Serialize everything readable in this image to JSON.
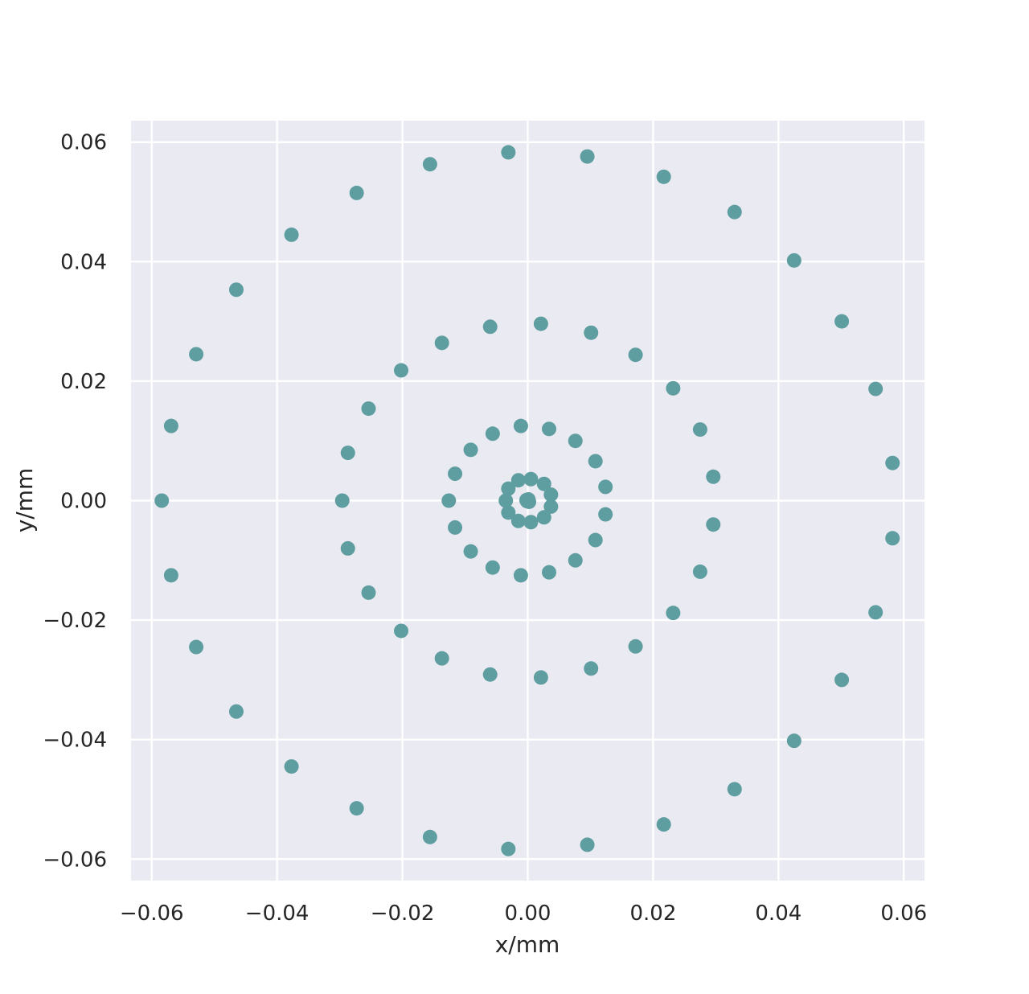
{
  "chart_data": {
    "type": "scatter",
    "title": "",
    "xlabel": "x/mm",
    "ylabel": "y/mm",
    "xlim": [
      -0.0633,
      0.0633
    ],
    "ylim": [
      -0.0636,
      0.0636
    ],
    "grid": true,
    "background": "#eaeaf2",
    "grid_color": "#ffffff",
    "marker_color": "#5f9ea0",
    "x_ticks": [
      -0.06,
      -0.04,
      -0.02,
      0.0,
      0.02,
      0.04,
      0.06
    ],
    "y_ticks": [
      -0.06,
      -0.04,
      -0.02,
      0.0,
      0.02,
      0.04,
      0.06
    ],
    "x_tick_labels": [
      "−0.06",
      "−0.04",
      "−0.02",
      "0.00",
      "0.02",
      "0.04",
      "0.06"
    ],
    "y_tick_labels": [
      "−0.06",
      "−0.04",
      "−0.02",
      "0.00",
      "0.02",
      "0.04",
      "0.06"
    ],
    "series": [
      {
        "name": "points",
        "x": [
          0.0,
          0.0001,
          0.0002,
          -0.0002,
          -0.0001,
          0.0001,
          -0.0035,
          -0.0031,
          -0.0015,
          0.0005,
          0.0026,
          0.0037,
          0.0037,
          0.0026,
          0.0005,
          -0.0015,
          -0.0031,
          -0.0126,
          -0.0116,
          -0.0091,
          -0.0056,
          -0.0011,
          0.0034,
          0.0076,
          0.0108,
          0.0124,
          0.0124,
          0.0108,
          0.0076,
          0.0034,
          -0.0011,
          -0.0056,
          -0.0091,
          -0.0116,
          -0.0296,
          -0.0287,
          -0.0254,
          -0.0202,
          -0.0137,
          -0.006,
          0.0021,
          0.0101,
          0.0172,
          0.0232,
          0.0275,
          0.0296,
          0.0296,
          0.0275,
          0.0232,
          0.0172,
          0.0101,
          0.0021,
          -0.006,
          -0.0137,
          -0.0202,
          -0.0254,
          -0.0287,
          -0.0584,
          -0.0569,
          -0.0529,
          -0.0465,
          -0.0377,
          -0.0273,
          -0.0156,
          -0.0031,
          0.0095,
          0.0217,
          0.033,
          0.0425,
          0.0501,
          0.0555,
          0.0582,
          0.0582,
          0.0555,
          0.0501,
          0.0425,
          0.033,
          0.0217,
          0.0095,
          -0.0031,
          -0.0156,
          -0.0273,
          -0.0377,
          -0.0465,
          -0.0529,
          -0.0569
        ],
        "y": [
          0.0,
          0.0002,
          -0.0002,
          0.0001,
          -0.0001,
          0.0,
          0.0,
          0.002,
          0.0034,
          0.0036,
          0.0028,
          0.001,
          -0.001,
          -0.0028,
          -0.0036,
          -0.0034,
          -0.002,
          0.0,
          0.0045,
          0.0085,
          0.0112,
          0.0125,
          0.012,
          0.01,
          0.0066,
          0.0023,
          -0.0023,
          -0.0066,
          -0.01,
          -0.012,
          -0.0125,
          -0.0112,
          -0.0085,
          -0.0045,
          0.0,
          0.008,
          0.0154,
          0.0218,
          0.0264,
          0.0291,
          0.0296,
          0.0281,
          0.0244,
          0.0188,
          0.0119,
          0.004,
          -0.004,
          -0.0119,
          -0.0188,
          -0.0244,
          -0.0281,
          -0.0296,
          -0.0291,
          -0.0264,
          -0.0218,
          -0.0154,
          -0.008,
          0.0,
          0.0125,
          0.0245,
          0.0353,
          0.0445,
          0.0515,
          0.0563,
          0.0583,
          0.0576,
          0.0542,
          0.0483,
          0.0402,
          0.03,
          0.0187,
          0.0063,
          -0.0063,
          -0.0187,
          -0.03,
          -0.0402,
          -0.0483,
          -0.0542,
          -0.0576,
          -0.0583,
          -0.0563,
          -0.0515,
          -0.0445,
          -0.0353,
          -0.0245,
          -0.0125
        ]
      }
    ]
  }
}
